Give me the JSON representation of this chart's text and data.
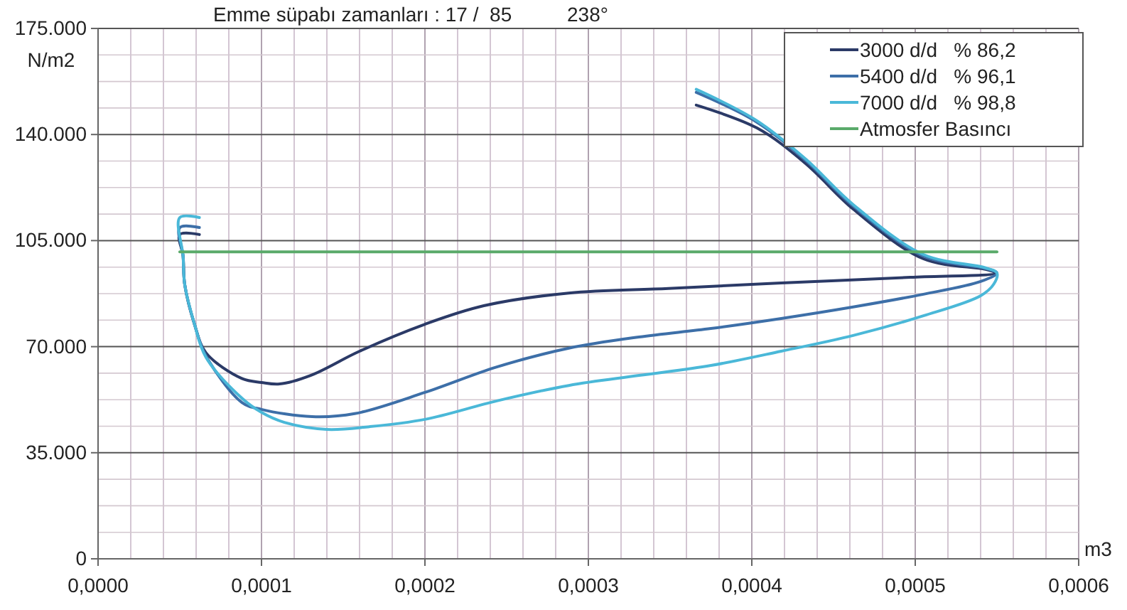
{
  "chart_data": {
    "type": "line",
    "title": "Emme süpabı zamanları : 17 /  85          238°",
    "xlabel": "m3",
    "ylabel": "N/m2",
    "xlim": [
      0,
      0.0006
    ],
    "ylim": [
      0,
      175000
    ],
    "xticks": [
      {
        "value": 0,
        "label": "0,0000"
      },
      {
        "value": 0.0001,
        "label": "0,0001"
      },
      {
        "value": 0.0002,
        "label": "0,0002"
      },
      {
        "value": 0.0003,
        "label": "0,0003"
      },
      {
        "value": 0.0004,
        "label": "0,0004"
      },
      {
        "value": 0.0005,
        "label": "0,0005"
      },
      {
        "value": 0.0006,
        "label": "0,0006"
      }
    ],
    "yticks": [
      0,
      {
        "value": 35000,
        "label": "35.000"
      },
      {
        "value": 70000,
        "label": "70.000"
      },
      {
        "value": 105000,
        "label": "105.000"
      },
      {
        "value": 140000,
        "label": "140.000"
      },
      {
        "value": 175000,
        "label": "175.000"
      }
    ],
    "grid": true,
    "legend": "top right",
    "marker": "none",
    "line_style": "solid",
    "series": [
      {
        "name": "3000 d/d   % 86,2",
        "color": "#2b3a67",
        "x": [
          6.2e-05,
          5e-05,
          5.2e-05,
          5.3e-05,
          5.9e-05,
          6.6e-05,
          8.8e-05,
          0.0001,
          0.000111,
          0.00013,
          0.00016,
          0.0002,
          0.000236,
          0.000288,
          0.000349,
          0.000418,
          0.000497,
          0.000549,
          0.000543,
          0.000505,
          0.000462,
          0.000433,
          0.000403,
          0.000366
        ],
        "values": [
          107000,
          107000,
          100000,
          90600,
          77400,
          68000,
          59500,
          58200,
          57700,
          60500,
          68500,
          77400,
          83500,
          87700,
          89200,
          91000,
          92900,
          94300,
          95500,
          99000,
          115400,
          130400,
          142200,
          149700
        ]
      },
      {
        "name": "5400 d/d   % 96,1",
        "color": "#3d6fa8",
        "x": [
          6.2e-05,
          5e-05,
          5.2e-05,
          5.3e-05,
          5.9e-05,
          6.6e-05,
          8.8e-05,
          0.0001,
          0.000131,
          0.000157,
          0.0002,
          0.000244,
          0.000288,
          0.000331,
          0.000375,
          0.000418,
          0.000462,
          0.000505,
          0.00054,
          0.00055,
          0.000543,
          0.000505,
          0.000462,
          0.000433,
          0.000403,
          0.000366
        ],
        "values": [
          109300,
          109300,
          100000,
          90600,
          77400,
          67000,
          51600,
          49300,
          46900,
          47900,
          54900,
          63300,
          69500,
          73200,
          76000,
          79300,
          83100,
          87300,
          91500,
          94300,
          95800,
          99900,
          116400,
          131400,
          144100,
          153900
        ]
      },
      {
        "name": "7000 d/d   % 98,8",
        "color": "#4ab8d8",
        "x": [
          6.2e-05,
          5e-05,
          5.2e-05,
          5.3e-05,
          5.9e-05,
          6.6e-05,
          8.8e-05,
          0.0001,
          0.000114,
          0.00014,
          0.000166,
          0.0002,
          0.000244,
          0.000288,
          0.000331,
          0.000375,
          0.000418,
          0.000462,
          0.000505,
          0.00054,
          0.000548,
          0.00055,
          0.000543,
          0.000505,
          0.000462,
          0.000433,
          0.000403,
          0.000366
        ],
        "values": [
          112600,
          112600,
          100000,
          90600,
          77400,
          66500,
          53000,
          48300,
          45000,
          42700,
          43600,
          46000,
          52100,
          57200,
          60500,
          63800,
          68500,
          73700,
          80200,
          86800,
          90600,
          94300,
          96000,
          100400,
          116900,
          131900,
          144600,
          154900
        ]
      },
      {
        "name": "Atmosfer Basıncı",
        "color": "#5aaa6a",
        "x": [
          5e-05,
          0.00055
        ],
        "values": [
          101300,
          101300
        ]
      }
    ]
  }
}
